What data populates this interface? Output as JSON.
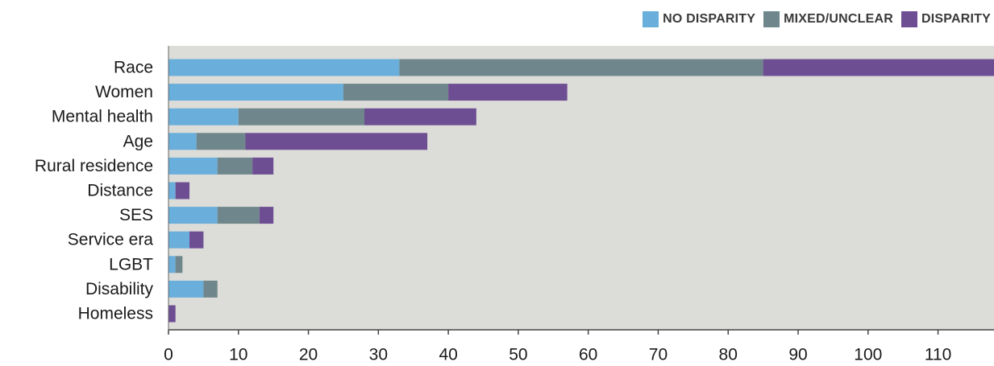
{
  "chart_data": {
    "type": "bar",
    "orientation": "horizontal",
    "stacked": true,
    "title": "",
    "xlabel": "",
    "ylabel": "",
    "categories": [
      "Race",
      "Women",
      "Mental health",
      "Age",
      "Rural residence",
      "Distance",
      "SES",
      "Service era",
      "LGBT",
      "Disability",
      "Homeless"
    ],
    "series": [
      {
        "name": "NO DISPARITY",
        "color": "#6aaedb",
        "values": [
          33,
          25,
          10,
          4,
          7,
          1,
          7,
          3,
          1,
          5,
          0
        ]
      },
      {
        "name": "MIXED/UNCLEAR",
        "color": "#6f878c",
        "values": [
          52,
          15,
          18,
          7,
          5,
          0,
          6,
          0,
          1,
          2,
          0
        ]
      },
      {
        "name": "DISPARITY",
        "color": "#6e4e93",
        "values": [
          33,
          17,
          16,
          26,
          3,
          2,
          2,
          2,
          0,
          0,
          1
        ]
      }
    ],
    "xlim": [
      0,
      118
    ],
    "xticks": [
      0,
      10,
      20,
      30,
      40,
      50,
      60,
      70,
      80,
      90,
      100,
      110
    ],
    "grid": false,
    "legend_position": "top-right",
    "plot_background": "#dcdcd8"
  }
}
